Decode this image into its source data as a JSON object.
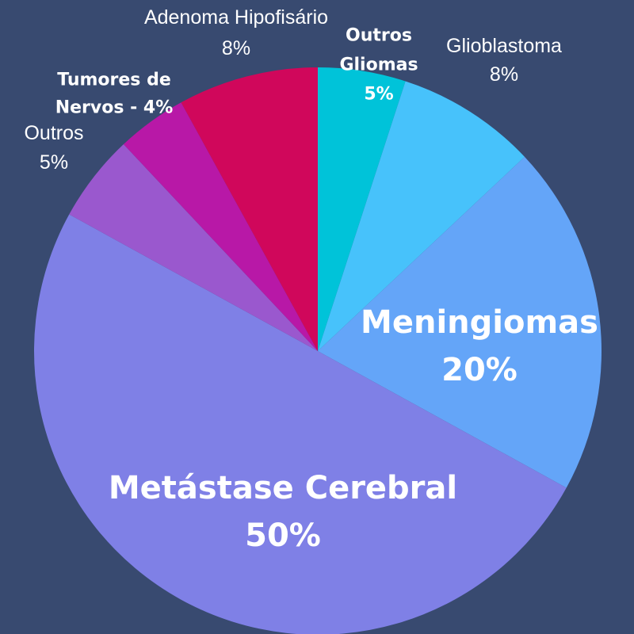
{
  "colors": {
    "background": "#384a70"
  },
  "chart_data": {
    "type": "pie",
    "start_angle_deg": 0,
    "direction": "clockwise",
    "slices": [
      {
        "key": "outros_gliomas",
        "lines": [
          "Outros",
          "Gliomas",
          "5%"
        ],
        "value": 5,
        "color": "#00c3d9"
      },
      {
        "key": "glioblastoma",
        "lines": [
          "Glioblastoma",
          "8%"
        ],
        "value": 8,
        "color": "#47c2fb"
      },
      {
        "key": "meningiomas",
        "lines": [
          "Meningiomas",
          "20%"
        ],
        "value": 20,
        "color": "#64a5f8"
      },
      {
        "key": "metastase_cerebral",
        "lines": [
          "Metástase Cerebral",
          "50%"
        ],
        "value": 50,
        "color": "#7f80e6"
      },
      {
        "key": "outros",
        "lines": [
          "Outros",
          "5%"
        ],
        "value": 5,
        "color": "#9a58ce"
      },
      {
        "key": "tumores_de_nervos",
        "lines": [
          "Tumores de",
          "Nervos - 4%"
        ],
        "value": 4,
        "color": "#b818a7"
      },
      {
        "key": "adenoma_hipofisario",
        "lines": [
          "Adenoma Hipofisário",
          "8%"
        ],
        "value": 8,
        "color": "#d0075b"
      }
    ]
  }
}
